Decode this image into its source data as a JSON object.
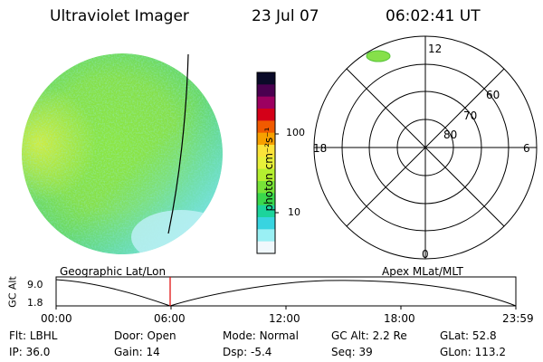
{
  "header": {
    "title": "Ultraviolet Imager",
    "date": "23 Jul 07",
    "time": "06:02:41 UT"
  },
  "colorbar": {
    "unit_label": "photon cm⁻²s⁻¹",
    "tick_labels": [
      "100",
      "10"
    ],
    "colors": [
      "#0a0a28",
      "#4a0050",
      "#9c0060",
      "#d40018",
      "#f05a00",
      "#f7a000",
      "#fbe33a",
      "#e8f03a",
      "#b4ef30",
      "#78e438",
      "#3ad84c",
      "#1cd49c",
      "#38d4e0",
      "#9af0f4",
      "#f0f8fc"
    ]
  },
  "polar_plot": {
    "mlt_labels": {
      "top": "12",
      "left": "18",
      "right": "6",
      "bottom": "0"
    },
    "mlat_labels": [
      "60",
      "70",
      "80"
    ],
    "footer": "Apex MLat/MLT"
  },
  "image_panel": {
    "footer": "Geographic Lat/Lon"
  },
  "altitude_plot": {
    "ylabel": "GC Alt",
    "y_ticks": [
      "9.0",
      "1.8"
    ],
    "x_ticks": [
      "00:00",
      "06:00",
      "12:00",
      "18:00",
      "23:59"
    ],
    "marker_time": "06:02"
  },
  "info": {
    "row1": [
      {
        "key": "Flt:",
        "value": "LBHL"
      },
      {
        "key": "Door:",
        "value": "Open"
      },
      {
        "key": "Mode:",
        "value": "Normal"
      },
      {
        "key": "GC Alt:",
        "value": "2.2 Re"
      },
      {
        "key": "GLat:",
        "value": "52.8"
      }
    ],
    "row2": [
      {
        "key": "IP:",
        "value": "36.0"
      },
      {
        "key": "Gain:",
        "value": "14"
      },
      {
        "key": "Dsp:",
        "value": "-5.4"
      },
      {
        "key": "Seq:",
        "value": "39"
      },
      {
        "key": "GLon:",
        "value": "113.2"
      }
    ]
  }
}
